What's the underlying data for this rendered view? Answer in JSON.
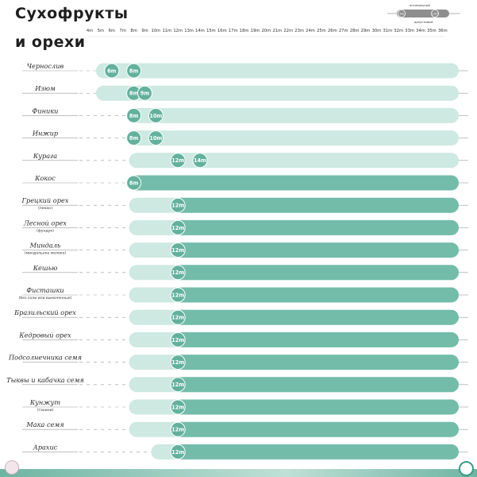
{
  "title": [
    "Сухофрукты",
    "и орехи"
  ],
  "legend": {
    "top_label": "оптимальный",
    "bottom_label": "допустимый",
    "start_label": "6m",
    "end_label": "10m"
  },
  "colors": {
    "bar_light": "#cde9e1",
    "bar_dark": "#73bcaa",
    "marker": "#63b19d",
    "marker_stroke": "#ffffff",
    "dash": "#9a9a9a",
    "text": "#2a2a2a"
  },
  "chart_data": {
    "type": "bar",
    "xlabel": "",
    "ylabel": "",
    "x_ticks": [
      "4m",
      "5m",
      "6m",
      "7m",
      "8m",
      "9m",
      "10m",
      "11m",
      "12m",
      "13m",
      "14m",
      "15m",
      "16m",
      "17m",
      "18m",
      "19m",
      "20m",
      "21m",
      "22m",
      "23m",
      "24m",
      "25m",
      "26m",
      "27m",
      "28m",
      "29m",
      "30m",
      "31m",
      "32m",
      "33m",
      "34m",
      "35m",
      "36m"
    ],
    "xlim": [
      4,
      36
    ],
    "categories": [
      {
        "name": "Чернослив",
        "note": "",
        "bar_start": 5,
        "dark_from": null,
        "markers": [
          6,
          8
        ]
      },
      {
        "name": "Изюм",
        "note": "",
        "bar_start": 5,
        "dark_from": null,
        "markers": [
          8,
          9
        ]
      },
      {
        "name": "Финики",
        "note": "",
        "bar_start": 8,
        "dark_from": null,
        "markers": [
          8,
          10
        ]
      },
      {
        "name": "Инжир",
        "note": "",
        "bar_start": 8,
        "dark_from": null,
        "markers": [
          8,
          10
        ]
      },
      {
        "name": "Курага",
        "note": "",
        "bar_start": 8,
        "dark_from": null,
        "markers": [
          12,
          14
        ]
      },
      {
        "name": "Кокос",
        "note": "",
        "bar_start": 8,
        "dark_from": 8,
        "markers": [
          8
        ]
      },
      {
        "name": "Грецкий орех",
        "note": "(пекан)",
        "bar_start": 8,
        "dark_from": 12,
        "markers": [
          12
        ]
      },
      {
        "name": "Лесной орех",
        "note": "(фундук)",
        "bar_start": 8,
        "dark_from": 12,
        "markers": [
          12
        ]
      },
      {
        "name": "Миндаль",
        "note": "(миндальное молоко)",
        "bar_start": 8,
        "dark_from": 12,
        "markers": [
          12
        ]
      },
      {
        "name": "Кешью",
        "note": "",
        "bar_start": 8,
        "dark_from": 12,
        "markers": [
          12
        ]
      },
      {
        "name": "Фисташки",
        "note": "(без соли или вымоченные)",
        "bar_start": 8,
        "dark_from": 12,
        "markers": [
          12
        ]
      },
      {
        "name": "Бразильский орех",
        "note": "",
        "bar_start": 8,
        "dark_from": 12,
        "markers": [
          12
        ]
      },
      {
        "name": "Кедровый орех",
        "note": "",
        "bar_start": 8,
        "dark_from": 12,
        "markers": [
          12
        ]
      },
      {
        "name": "Подсолнечника семя",
        "note": "",
        "bar_start": 8,
        "dark_from": 12,
        "markers": [
          12
        ]
      },
      {
        "name": "Тыквы и кабачка семя",
        "note": "",
        "bar_start": 8,
        "dark_from": 12,
        "markers": [
          12
        ]
      },
      {
        "name": "Кунжут",
        "note": "(тахини)",
        "bar_start": 8,
        "dark_from": 12,
        "markers": [
          12
        ]
      },
      {
        "name": "Мака семя",
        "note": "",
        "bar_start": 8,
        "dark_from": 12,
        "markers": [
          12
        ]
      },
      {
        "name": "Арахис",
        "note": "",
        "bar_start": 10,
        "dark_from": 12,
        "markers": [
          12
        ]
      }
    ]
  }
}
